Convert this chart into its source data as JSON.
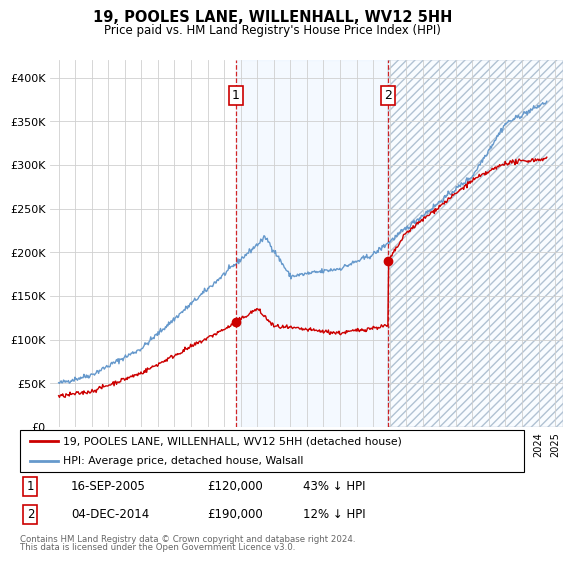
{
  "title": "19, POOLES LANE, WILLENHALL, WV12 5HH",
  "subtitle": "Price paid vs. HM Land Registry's House Price Index (HPI)",
  "legend_line1": "19, POOLES LANE, WILLENHALL, WV12 5HH (detached house)",
  "legend_line2": "HPI: Average price, detached house, Walsall",
  "footer1": "Contains HM Land Registry data © Crown copyright and database right 2024.",
  "footer2": "This data is licensed under the Open Government Licence v3.0.",
  "sale1_date": "16-SEP-2005",
  "sale1_price": "£120,000",
  "sale1_note": "43% ↓ HPI",
  "sale2_date": "04-DEC-2014",
  "sale2_price": "£190,000",
  "sale2_note": "12% ↓ HPI",
  "sale1_year": 2005.71,
  "sale2_year": 2014.92,
  "sale1_value": 120000,
  "sale2_value": 190000,
  "red_color": "#cc0000",
  "blue_color": "#6699cc",
  "shaded_region_color": "#ddeeff",
  "ylim_min": 0,
  "ylim_max": 420000,
  "xlim_min": 1994.5,
  "xlim_max": 2025.5,
  "yticks": [
    0,
    50000,
    100000,
    150000,
    200000,
    250000,
    300000,
    350000,
    400000
  ]
}
